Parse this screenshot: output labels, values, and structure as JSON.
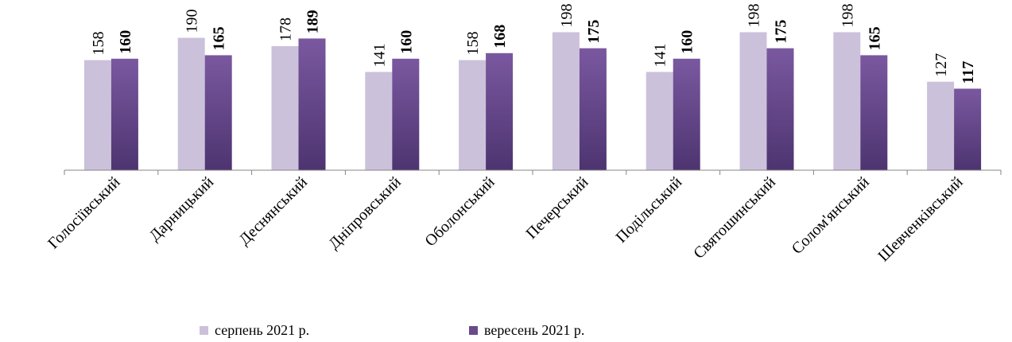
{
  "chart_data": {
    "type": "bar",
    "categories": [
      "Голосіївський",
      "Дарницький",
      "Деснянський",
      "Дніпровський",
      "Оболонський",
      "Печерський",
      "Подільський",
      "Святошинський",
      "Солом'янський",
      "Шевченківський"
    ],
    "series": [
      {
        "name": "серпень 2021 р.",
        "values": [
          158,
          190,
          178,
          141,
          158,
          198,
          141,
          198,
          198,
          127
        ],
        "color": "#ccc1da",
        "label_bold": false
      },
      {
        "name": "вересень 2021 р.",
        "values": [
          160,
          165,
          189,
          160,
          168,
          175,
          160,
          175,
          165,
          117
        ],
        "color": "#6a4a8c",
        "label_bold": true
      }
    ],
    "ylim": [
      0,
      210
    ],
    "grid": false,
    "legend_position": "bottom"
  }
}
